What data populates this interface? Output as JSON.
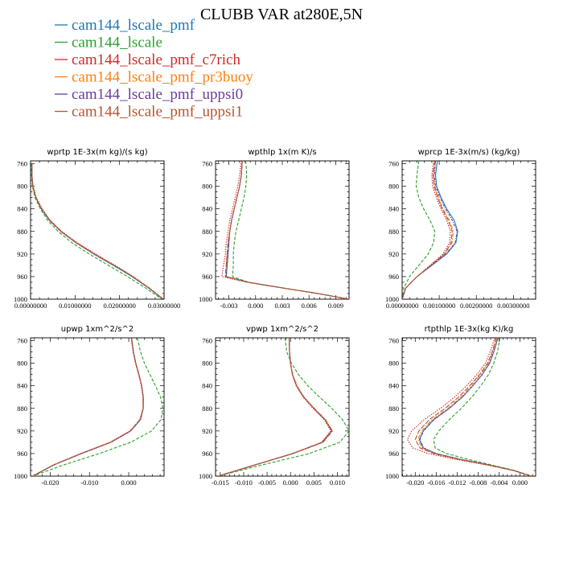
{
  "figure_title": "CLUBB VAR at280E,5N",
  "legend": [
    {
      "label": "cam144_lscale_pmf",
      "color": "#1f77b4"
    },
    {
      "label": "cam144_lscale",
      "color": "#2ca02c"
    },
    {
      "label": "cam144_lscale_pmf_c7rich",
      "color": "#d62728"
    },
    {
      "label": "cam144_lscale_pmf_pr3buoy",
      "color": "#ff7f0e"
    },
    {
      "label": "cam144_lscale_pmf_uppsi0",
      "color": "#6a3d9a"
    },
    {
      "label": "cam144_lscale_pmf_uppsi1",
      "color": "#b5542d"
    }
  ],
  "chart_data": [
    {
      "type": "line",
      "title": "wprtp  1E-3x(m kg)/(s kg)",
      "xlim": [
        0.0,
        0.03
      ],
      "ylim": [
        1000,
        755
      ],
      "xticks": [
        0.0,
        0.01,
        0.02,
        0.03
      ],
      "xtick_labels": [
        "0.00000000",
        "0.01000000",
        "0.02000000",
        "0.03000000"
      ],
      "yticks": [
        760,
        800,
        840,
        880,
        920,
        960,
        1000
      ],
      "y": [
        760,
        780,
        800,
        820,
        840,
        860,
        880,
        900,
        920,
        940,
        960,
        980,
        1000
      ],
      "series": [
        {
          "name": "cam144_lscale_pmf",
          "values": [
            0.0003,
            0.0003,
            0.0005,
            0.0012,
            0.0024,
            0.0042,
            0.0068,
            0.0102,
            0.0142,
            0.0186,
            0.0228,
            0.0265,
            0.0298
          ]
        },
        {
          "name": "cam144_lscale",
          "values": [
            0.0002,
            0.0002,
            0.0004,
            0.001,
            0.0022,
            0.0038,
            0.0062,
            0.0093,
            0.0132,
            0.0175,
            0.0218,
            0.0258,
            0.0295
          ]
        },
        {
          "name": "cam144_lscale_pmf_c7rich",
          "values": [
            0.0003,
            0.0003,
            0.0006,
            0.0013,
            0.0026,
            0.0044,
            0.007,
            0.0105,
            0.0146,
            0.019,
            0.0231,
            0.0267,
            0.0299
          ]
        },
        {
          "name": "cam144_lscale_pmf_pr3buoy",
          "values": [
            0.0003,
            0.0003,
            0.0005,
            0.0012,
            0.0025,
            0.0043,
            0.0069,
            0.0103,
            0.0144,
            0.0188,
            0.023,
            0.0266,
            0.0298
          ]
        },
        {
          "name": "cam144_lscale_pmf_uppsi0",
          "values": [
            0.0003,
            0.0003,
            0.0005,
            0.0012,
            0.0024,
            0.0042,
            0.0068,
            0.0102,
            0.0143,
            0.0187,
            0.0229,
            0.0265,
            0.0298
          ]
        },
        {
          "name": "cam144_lscale_pmf_uppsi1",
          "values": [
            0.0003,
            0.0003,
            0.0005,
            0.0012,
            0.0025,
            0.0043,
            0.0069,
            0.0103,
            0.0144,
            0.0188,
            0.023,
            0.0266,
            0.0298
          ]
        }
      ]
    },
    {
      "type": "line",
      "title": "wpthlp  1x(m K)/s",
      "xlim": [
        -0.0045,
        0.0105
      ],
      "ylim": [
        1000,
        755
      ],
      "xticks": [
        -0.003,
        0.0,
        0.003,
        0.006,
        0.009
      ],
      "xtick_labels": [
        "-0.003",
        "0.000",
        "0.003",
        "0.006",
        "0.009"
      ],
      "yticks": [
        760,
        800,
        840,
        880,
        920,
        960,
        1000
      ],
      "y": [
        755,
        780,
        800,
        820,
        840,
        860,
        880,
        900,
        920,
        940,
        960,
        970,
        980,
        990,
        1000
      ],
      "series": [
        {
          "name": "cam144_lscale_pmf",
          "values": [
            -0.0015,
            -0.0016,
            -0.0018,
            -0.0021,
            -0.0024,
            -0.0027,
            -0.0029,
            -0.003,
            -0.0031,
            -0.0032,
            -0.0033,
            -0.0008,
            0.003,
            0.007,
            0.0105
          ]
        },
        {
          "name": "cam144_lscale",
          "values": [
            -0.0011,
            -0.001,
            -0.0011,
            -0.0013,
            -0.0016,
            -0.0019,
            -0.0022,
            -0.0024,
            -0.0025,
            -0.0025,
            -0.0026,
            -0.0008,
            0.003,
            0.007,
            0.0105
          ]
        },
        {
          "name": "cam144_lscale_pmf_c7rich",
          "values": [
            -0.0016,
            -0.0018,
            -0.002,
            -0.0023,
            -0.0026,
            -0.0029,
            -0.0031,
            -0.0033,
            -0.0034,
            -0.0036,
            -0.0038,
            -0.001,
            0.003,
            0.007,
            0.0105
          ]
        },
        {
          "name": "cam144_lscale_pmf_pr3buoy",
          "values": [
            -0.0015,
            -0.0016,
            -0.0018,
            -0.0021,
            -0.0024,
            -0.0027,
            -0.0029,
            -0.0031,
            -0.0032,
            -0.0033,
            -0.0034,
            -0.0009,
            0.003,
            0.007,
            0.0105
          ]
        },
        {
          "name": "cam144_lscale_pmf_uppsi0",
          "values": [
            -0.0015,
            -0.0016,
            -0.0018,
            -0.0021,
            -0.0024,
            -0.0027,
            -0.0029,
            -0.003,
            -0.0031,
            -0.0032,
            -0.0033,
            -0.0008,
            0.003,
            0.007,
            0.0105
          ]
        },
        {
          "name": "cam144_lscale_pmf_uppsi1",
          "values": [
            -0.0015,
            -0.0016,
            -0.0018,
            -0.0021,
            -0.0024,
            -0.0027,
            -0.0029,
            -0.0031,
            -0.0032,
            -0.0033,
            -0.0034,
            -0.0009,
            0.003,
            0.007,
            0.0105
          ]
        }
      ]
    },
    {
      "type": "line",
      "title": "wprcp  1E-3x(m/s) (kg/kg)",
      "xlim": [
        0.0,
        0.0036
      ],
      "ylim": [
        1000,
        755
      ],
      "xticks": [
        0.0,
        0.001,
        0.002,
        0.003
      ],
      "xtick_labels": [
        "0.00000000",
        "0.00100000",
        "0.00200000",
        "0.00300000"
      ],
      "yticks": [
        760,
        800,
        840,
        880,
        920,
        960,
        1000
      ],
      "y": [
        755,
        780,
        800,
        820,
        840,
        860,
        880,
        900,
        920,
        940,
        960,
        980,
        1000
      ],
      "series": [
        {
          "name": "cam144_lscale_pmf",
          "values": [
            0.00095,
            0.0009,
            0.00093,
            0.00105,
            0.0012,
            0.0014,
            0.0015,
            0.00145,
            0.0012,
            0.0008,
            0.0004,
            0.0001,
            0.0
          ]
        },
        {
          "name": "cam144_lscale",
          "values": [
            0.00045,
            0.0004,
            0.00038,
            0.00045,
            0.00058,
            0.00075,
            0.00088,
            0.00085,
            0.0007,
            0.00045,
            0.0002,
            5e-05,
            0.0
          ]
        },
        {
          "name": "cam144_lscale_pmf_c7rich",
          "values": [
            0.00085,
            0.0008,
            0.00082,
            0.00092,
            0.00105,
            0.0012,
            0.0013,
            0.00128,
            0.0011,
            0.00075,
            0.0004,
            0.0001,
            0.0
          ]
        },
        {
          "name": "cam144_lscale_pmf_pr3buoy",
          "values": [
            0.0009,
            0.00085,
            0.00088,
            0.00098,
            0.0011,
            0.00127,
            0.00138,
            0.00135,
            0.00115,
            0.00078,
            0.0004,
            0.0001,
            0.0
          ]
        },
        {
          "name": "cam144_lscale_pmf_uppsi0",
          "values": [
            0.0009,
            0.00087,
            0.0009,
            0.00102,
            0.00117,
            0.00135,
            0.00148,
            0.00143,
            0.00118,
            0.0008,
            0.0004,
            0.0001,
            0.0
          ]
        },
        {
          "name": "cam144_lscale_pmf_uppsi1",
          "values": [
            0.00088,
            0.00083,
            0.00086,
            0.00096,
            0.00108,
            0.00124,
            0.00135,
            0.00132,
            0.00114,
            0.00077,
            0.0004,
            0.0001,
            0.0
          ]
        }
      ]
    },
    {
      "type": "line",
      "title": "upwp  1xm^2/s^2",
      "xlim": [
        -0.025,
        0.009
      ],
      "ylim": [
        1000,
        755
      ],
      "xticks": [
        -0.02,
        -0.01,
        0.0
      ],
      "xtick_labels": [
        "-0.020",
        "-0.010",
        "0.000"
      ],
      "yticks": [
        760,
        800,
        840,
        880,
        920,
        960,
        1000
      ],
      "y": [
        755,
        780,
        800,
        820,
        840,
        860,
        880,
        900,
        920,
        940,
        960,
        980,
        1000
      ],
      "series": [
        {
          "name": "cam144_lscale_pmf",
          "values": [
            0.0007,
            0.0012,
            0.0018,
            0.0026,
            0.0033,
            0.0037,
            0.0037,
            0.003,
            0.0005,
            -0.0045,
            -0.012,
            -0.019,
            -0.0245
          ]
        },
        {
          "name": "cam144_lscale",
          "values": [
            0.0022,
            0.003,
            0.004,
            0.0054,
            0.0068,
            0.0081,
            0.0087,
            0.0082,
            0.0058,
            0.0005,
            -0.0075,
            -0.0165,
            -0.0245
          ]
        },
        {
          "name": "cam144_lscale_pmf_c7rich",
          "values": [
            0.0006,
            0.0011,
            0.0017,
            0.0025,
            0.0032,
            0.0036,
            0.0036,
            0.0028,
            0.0003,
            -0.0048,
            -0.0123,
            -0.0192,
            -0.0245
          ]
        },
        {
          "name": "cam144_lscale_pmf_pr3buoy",
          "values": [
            0.0007,
            0.0012,
            0.0018,
            0.0026,
            0.0033,
            0.0037,
            0.0037,
            0.0029,
            0.0004,
            -0.0046,
            -0.0121,
            -0.0191,
            -0.0245
          ]
        },
        {
          "name": "cam144_lscale_pmf_uppsi0",
          "values": [
            0.0007,
            0.0012,
            0.0018,
            0.0026,
            0.0033,
            0.0037,
            0.0037,
            0.003,
            0.0005,
            -0.0045,
            -0.012,
            -0.019,
            -0.0245
          ]
        },
        {
          "name": "cam144_lscale_pmf_uppsi1",
          "values": [
            0.0007,
            0.0012,
            0.0018,
            0.0026,
            0.0033,
            0.0037,
            0.0037,
            0.0029,
            0.0004,
            -0.0046,
            -0.0121,
            -0.0191,
            -0.0245
          ]
        }
      ]
    },
    {
      "type": "line",
      "title": "vpwp  1xm^2/s^2",
      "xlim": [
        -0.016,
        0.0125
      ],
      "ylim": [
        1000,
        755
      ],
      "xticks": [
        -0.015,
        -0.01,
        -0.005,
        0.0,
        0.005,
        0.01
      ],
      "xtick_labels": [
        "-0.015",
        "-0.010",
        "-0.005",
        "0.000",
        "0.005",
        "0.010"
      ],
      "yticks": [
        760,
        800,
        840,
        880,
        920,
        960,
        1000
      ],
      "y": [
        755,
        780,
        800,
        820,
        840,
        860,
        880,
        900,
        920,
        940,
        960,
        980,
        1000
      ],
      "series": [
        {
          "name": "cam144_lscale_pmf",
          "values": [
            -0.0003,
            -0.0002,
            0.0,
            0.0004,
            0.0013,
            0.0028,
            0.005,
            0.0074,
            0.0088,
            0.0068,
            0.0005,
            -0.0075,
            -0.0155
          ]
        },
        {
          "name": "cam144_lscale",
          "values": [
            -0.0012,
            -0.0008,
            0.0002,
            0.0017,
            0.0037,
            0.0062,
            0.0088,
            0.0111,
            0.0125,
            0.0105,
            0.004,
            -0.006,
            -0.0155
          ]
        },
        {
          "name": "cam144_lscale_pmf_c7rich",
          "values": [
            -0.0003,
            -0.0002,
            0.0,
            0.0004,
            0.0012,
            0.0027,
            0.0048,
            0.0072,
            0.0086,
            0.0066,
            0.0004,
            -0.0076,
            -0.0155
          ]
        },
        {
          "name": "cam144_lscale_pmf_pr3buoy",
          "values": [
            -0.0003,
            -0.0002,
            0.0,
            0.0005,
            0.0014,
            0.0029,
            0.0051,
            0.0075,
            0.009,
            0.007,
            0.0006,
            -0.0074,
            -0.0155
          ]
        },
        {
          "name": "cam144_lscale_pmf_uppsi0",
          "values": [
            -0.0003,
            -0.0002,
            0.0,
            0.0004,
            0.0013,
            0.0028,
            0.005,
            0.0074,
            0.0088,
            0.0068,
            0.0005,
            -0.0075,
            -0.0155
          ]
        },
        {
          "name": "cam144_lscale_pmf_uppsi1",
          "values": [
            -0.0003,
            -0.0002,
            0.0,
            0.0004,
            0.0013,
            0.0028,
            0.005,
            0.0074,
            0.0089,
            0.0069,
            0.0005,
            -0.0075,
            -0.0155
          ]
        }
      ]
    },
    {
      "type": "line",
      "title": "rtpthlp  1E-3x(kg K)/kg",
      "xlim": [
        -0.0225,
        0.003
      ],
      "ylim": [
        1000,
        755
      ],
      "xticks": [
        -0.02,
        -0.016,
        -0.012,
        -0.008,
        -0.004,
        0.0
      ],
      "xtick_labels": [
        "-0.020",
        "-0.016",
        "-0.012",
        "-0.008",
        "-0.004",
        "0.000"
      ],
      "yticks": [
        760,
        800,
        840,
        880,
        920,
        960,
        1000
      ],
      "y": [
        755,
        780,
        800,
        820,
        840,
        860,
        880,
        900,
        920,
        935,
        950,
        960,
        970,
        980,
        990,
        1000
      ],
      "series": [
        {
          "name": "cam144_lscale_pmf",
          "values": [
            -0.0042,
            -0.005,
            -0.0058,
            -0.0072,
            -0.009,
            -0.011,
            -0.0135,
            -0.0165,
            -0.0185,
            -0.0192,
            -0.0185,
            -0.016,
            -0.0115,
            -0.006,
            -0.0012,
            0.0022
          ]
        },
        {
          "name": "cam144_lscale",
          "values": [
            -0.0038,
            -0.0043,
            -0.005,
            -0.006,
            -0.0075,
            -0.0092,
            -0.0112,
            -0.0135,
            -0.0155,
            -0.0165,
            -0.0162,
            -0.014,
            -0.01,
            -0.0055,
            -0.001,
            0.0022
          ]
        },
        {
          "name": "cam144_lscale_pmf_c7rich",
          "values": [
            -0.0048,
            -0.0057,
            -0.0066,
            -0.0082,
            -0.0102,
            -0.0125,
            -0.0152,
            -0.0183,
            -0.0207,
            -0.0215,
            -0.0205,
            -0.0175,
            -0.0125,
            -0.0065,
            -0.0013,
            0.0022
          ]
        },
        {
          "name": "cam144_lscale_pmf_pr3buoy",
          "values": [
            -0.0044,
            -0.0052,
            -0.006,
            -0.0075,
            -0.0093,
            -0.0113,
            -0.0138,
            -0.0168,
            -0.0188,
            -0.0195,
            -0.0187,
            -0.0162,
            -0.0116,
            -0.0061,
            -0.0012,
            0.0022
          ]
        },
        {
          "name": "cam144_lscale_pmf_uppsi0",
          "values": [
            -0.0042,
            -0.005,
            -0.0058,
            -0.0072,
            -0.009,
            -0.011,
            -0.0135,
            -0.0164,
            -0.0184,
            -0.0191,
            -0.0184,
            -0.016,
            -0.0115,
            -0.006,
            -0.0012,
            0.0022
          ]
        },
        {
          "name": "cam144_lscale_pmf_uppsi1",
          "values": [
            -0.0045,
            -0.0053,
            -0.0062,
            -0.0077,
            -0.0096,
            -0.0117,
            -0.0143,
            -0.0173,
            -0.0193,
            -0.02,
            -0.0191,
            -0.0165,
            -0.0118,
            -0.0062,
            -0.0012,
            0.0022
          ]
        }
      ]
    }
  ]
}
